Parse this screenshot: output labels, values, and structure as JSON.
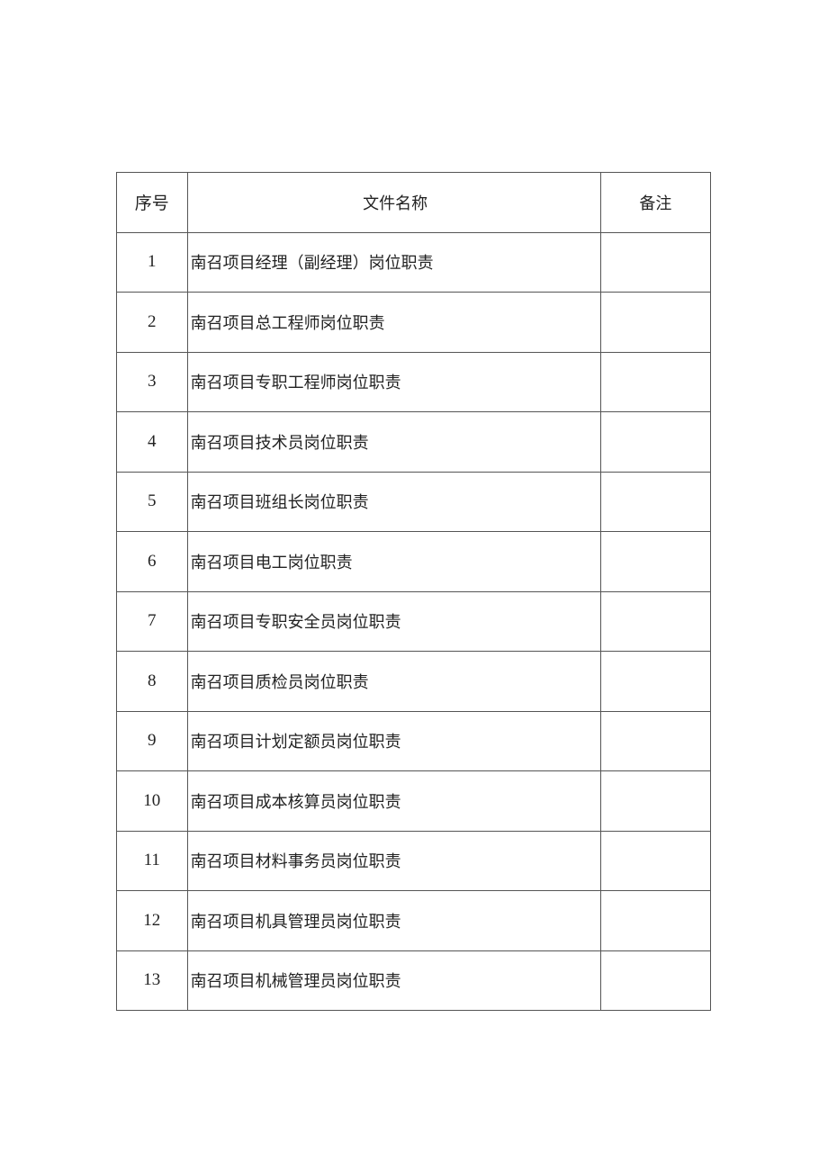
{
  "table": {
    "headers": [
      "序号",
      "文件名称",
      "备注"
    ],
    "rows": [
      {
        "no": "1",
        "name": "南召项目经理（副经理）岗位职责",
        "note": ""
      },
      {
        "no": "2",
        "name": "南召项目总工程师岗位职责",
        "note": ""
      },
      {
        "no": "3",
        "name": "南召项目专职工程师岗位职责",
        "note": ""
      },
      {
        "no": "4",
        "name": "南召项目技术员岗位职责",
        "note": ""
      },
      {
        "no": "5",
        "name": "南召项目班组长岗位职责",
        "note": ""
      },
      {
        "no": "6",
        "name": "南召项目电工岗位职责",
        "note": ""
      },
      {
        "no": "7",
        "name": "南召项目专职安全员岗位职责",
        "note": ""
      },
      {
        "no": "8",
        "name": "南召项目质检员岗位职责",
        "note": ""
      },
      {
        "no": "9",
        "name": "南召项目计划定额员岗位职责",
        "note": ""
      },
      {
        "no": "10",
        "name": "南召项目成本核算员岗位职责",
        "note": ""
      },
      {
        "no": "11",
        "name": "南召项目材料事务员岗位职责",
        "note": ""
      },
      {
        "no": "12",
        "name": "南召项目机具管理员岗位职责",
        "note": ""
      },
      {
        "no": "13",
        "name": "南召项目机械管理员岗位职责",
        "note": ""
      }
    ]
  }
}
